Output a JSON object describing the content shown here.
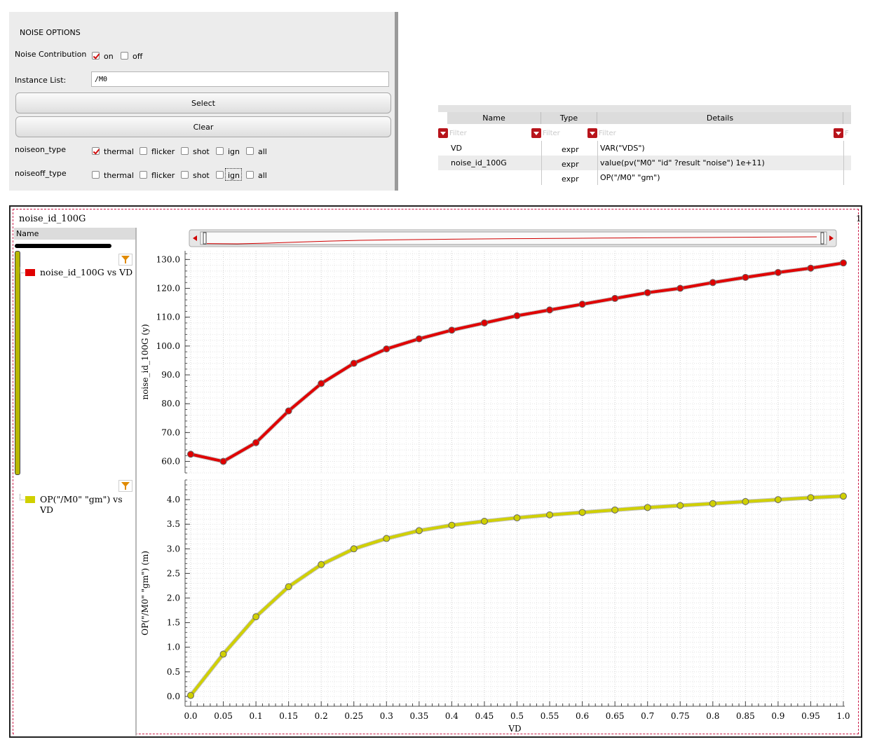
{
  "noise_options": {
    "title": "NOISE OPTIONS",
    "contribution_label": "Noise Contribution",
    "contribution_on": "on",
    "contribution_off": "off",
    "instance_label": "Instance List:",
    "instance_value": "/M0",
    "select_button": "Select",
    "clear_button": "Clear",
    "noiseon_label": "noiseon_type",
    "noiseoff_label": "noiseoff_type",
    "types": [
      "thermal",
      "flicker",
      "shot",
      "ign",
      "all"
    ]
  },
  "expr_table": {
    "columns": [
      "Name",
      "Type",
      "Details"
    ],
    "filter_placeholder": "Filter",
    "rows": [
      {
        "name": "VD",
        "type": "expr",
        "details": "VAR(\"VDS\")"
      },
      {
        "name": "noise_id_100G",
        "type": "expr",
        "details": "value(pv(\"M0\" \"id\" ?result \"noise\") 1e+11)"
      },
      {
        "name": "",
        "type": "expr",
        "details": "OP(\"/M0\" \"gm\")"
      }
    ]
  },
  "waveform": {
    "window_title": "noise_id_100G",
    "window_number": "1",
    "legend_header": "Name",
    "legend_items": [
      {
        "label": "noise_id_100G vs VD",
        "color": "#e00000"
      },
      {
        "label": "OP(\"/M0\" \"gm\") vs VD",
        "color": "#d0d000"
      }
    ]
  },
  "chart_data": {
    "type": "line",
    "x": [
      0.0,
      0.05,
      0.1,
      0.15,
      0.2,
      0.25,
      0.3,
      0.35,
      0.4,
      0.45,
      0.5,
      0.55,
      0.6,
      0.65,
      0.7,
      0.75,
      0.8,
      0.85,
      0.9,
      0.95,
      1.0
    ],
    "xlabel": "VD",
    "x_tick_labels": [
      "0.0",
      "0.05",
      "0.1",
      "0.15",
      "0.2",
      "0.25",
      "0.3",
      "0.35",
      "0.4",
      "0.45",
      "0.5",
      "0.55",
      "0.6",
      "0.65",
      "0.7",
      "0.75",
      "0.8",
      "0.85",
      "0.9",
      "0.95",
      "1.0"
    ],
    "xlim": [
      0,
      1
    ],
    "grid": true,
    "panels": [
      {
        "series": [
          {
            "name": "noise_id_100G vs VD",
            "color": "#e00000",
            "values": [
              62.5,
              60.0,
              66.5,
              77.5,
              87.0,
              94.0,
              99.0,
              102.5,
              105.5,
              108.0,
              110.5,
              112.5,
              114.5,
              116.5,
              118.5,
              120.0,
              122.0,
              123.8,
              125.5,
              127.0,
              128.8
            ]
          }
        ],
        "ylabel": "noise_id_100G (y)",
        "ylim": [
          56,
          133
        ],
        "y_ticks": [
          60.0,
          70.0,
          80.0,
          90.0,
          100.0,
          110.0,
          120.0,
          130.0
        ],
        "y_tick_labels": [
          "60.0",
          "70.0",
          "80.0",
          "90.0",
          "100.0",
          "110.0",
          "120.0",
          "130.0"
        ]
      },
      {
        "series": [
          {
            "name": "OP(\"/M0\" \"gm\") vs VD",
            "color": "#d0d000",
            "values": [
              0.02,
              0.86,
              1.62,
              2.23,
              2.68,
              3.0,
              3.21,
              3.37,
              3.48,
              3.56,
              3.63,
              3.69,
              3.74,
              3.79,
              3.84,
              3.88,
              3.92,
              3.96,
              4.0,
              4.04,
              4.07
            ]
          }
        ],
        "ylabel": "OP(\"/M0\" \"gm\") (m)",
        "ylim": [
          -0.2,
          4.4
        ],
        "y_ticks": [
          0.0,
          0.5,
          1.0,
          1.5,
          2.0,
          2.5,
          3.0,
          3.5,
          4.0
        ],
        "y_tick_labels": [
          "0.0",
          "0.5",
          "1.0",
          "1.5",
          "2.0",
          "2.5",
          "3.0",
          "3.5",
          "4.0"
        ]
      }
    ]
  }
}
